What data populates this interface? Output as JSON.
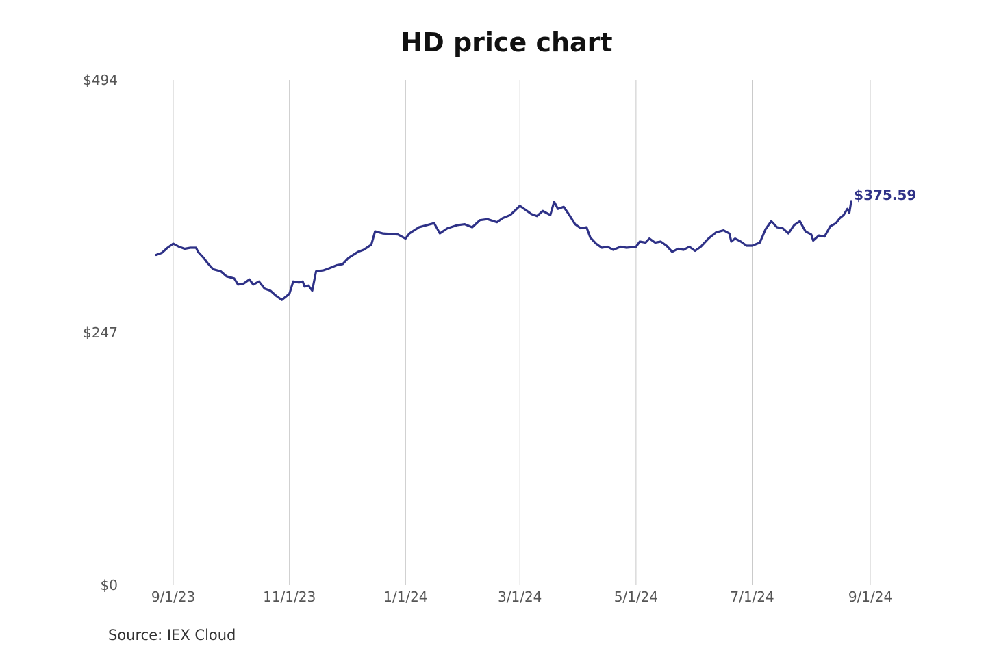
{
  "chart_data": {
    "type": "line",
    "title": "HD price chart",
    "source": "Source: IEX Cloud",
    "xlabel": "",
    "ylabel": "",
    "ylim": [
      0,
      494
    ],
    "xlim": [
      "2023-08-21",
      "2024-09-01"
    ],
    "y_ticks": [
      {
        "value": 494,
        "label": "$494"
      },
      {
        "value": 247,
        "label": "$247"
      },
      {
        "value": 0,
        "label": "$0"
      }
    ],
    "x_ticks": [
      {
        "value": "2023-09-01",
        "label": "9/1/23"
      },
      {
        "value": "2023-11-01",
        "label": "11/1/23"
      },
      {
        "value": "2024-01-01",
        "label": "1/1/24"
      },
      {
        "value": "2024-03-01",
        "label": "3/1/24"
      },
      {
        "value": "2024-05-01",
        "label": "5/1/24"
      },
      {
        "value": "2024-07-01",
        "label": "7/1/24"
      },
      {
        "value": "2024-09-01",
        "label": "9/1/24"
      }
    ],
    "grid": {
      "vertical": true,
      "horizontal": false
    },
    "line_color": "#2e3187",
    "grid_color": "#c8c8c8",
    "last_value_label": "$375.59",
    "series": [
      {
        "points": [
          [
            "2023-08-23",
            323
          ],
          [
            "2023-08-26",
            325
          ],
          [
            "2023-08-29",
            330
          ],
          [
            "2023-09-01",
            334
          ],
          [
            "2023-09-04",
            331
          ],
          [
            "2023-09-07",
            329
          ],
          [
            "2023-09-10",
            330
          ],
          [
            "2023-09-13",
            330
          ],
          [
            "2023-09-14",
            326
          ],
          [
            "2023-09-17",
            320
          ],
          [
            "2023-09-19",
            315
          ],
          [
            "2023-09-22",
            309
          ],
          [
            "2023-09-26",
            307
          ],
          [
            "2023-09-29",
            302
          ],
          [
            "2023-10-03",
            300
          ],
          [
            "2023-10-05",
            294
          ],
          [
            "2023-10-08",
            295
          ],
          [
            "2023-10-11",
            299
          ],
          [
            "2023-10-13",
            294
          ],
          [
            "2023-10-16",
            297
          ],
          [
            "2023-10-19",
            290
          ],
          [
            "2023-10-22",
            288
          ],
          [
            "2023-10-25",
            283
          ],
          [
            "2023-10-28",
            279
          ],
          [
            "2023-11-01",
            285
          ],
          [
            "2023-11-03",
            297
          ],
          [
            "2023-11-06",
            296
          ],
          [
            "2023-11-08",
            297
          ],
          [
            "2023-11-09",
            292
          ],
          [
            "2023-11-11",
            293
          ],
          [
            "2023-11-13",
            288
          ],
          [
            "2023-11-15",
            307
          ],
          [
            "2023-11-19",
            308
          ],
          [
            "2023-11-22",
            310
          ],
          [
            "2023-11-26",
            313
          ],
          [
            "2023-11-29",
            314
          ],
          [
            "2023-12-02",
            320
          ],
          [
            "2023-12-07",
            326
          ],
          [
            "2023-12-10",
            328
          ],
          [
            "2023-12-14",
            333
          ],
          [
            "2023-12-16",
            346
          ],
          [
            "2023-12-20",
            344
          ],
          [
            "2023-12-28",
            343
          ],
          [
            "2024-01-01",
            339
          ],
          [
            "2024-01-03",
            344
          ],
          [
            "2024-01-08",
            350
          ],
          [
            "2024-01-12",
            352
          ],
          [
            "2024-01-16",
            354
          ],
          [
            "2024-01-19",
            344
          ],
          [
            "2024-01-23",
            349
          ],
          [
            "2024-01-28",
            352
          ],
          [
            "2024-02-01",
            353
          ],
          [
            "2024-02-05",
            350
          ],
          [
            "2024-02-09",
            357
          ],
          [
            "2024-02-13",
            358
          ],
          [
            "2024-02-18",
            355
          ],
          [
            "2024-02-21",
            359
          ],
          [
            "2024-02-25",
            362
          ],
          [
            "2024-03-01",
            371
          ],
          [
            "2024-03-04",
            367
          ],
          [
            "2024-03-07",
            363
          ],
          [
            "2024-03-10",
            361
          ],
          [
            "2024-03-13",
            366
          ],
          [
            "2024-03-17",
            362
          ],
          [
            "2024-03-19",
            375
          ],
          [
            "2024-03-21",
            368
          ],
          [
            "2024-03-24",
            370
          ],
          [
            "2024-03-27",
            362
          ],
          [
            "2024-03-30",
            353
          ],
          [
            "2024-04-02",
            349
          ],
          [
            "2024-04-05",
            350
          ],
          [
            "2024-04-07",
            340
          ],
          [
            "2024-04-10",
            334
          ],
          [
            "2024-04-13",
            330
          ],
          [
            "2024-04-16",
            331
          ],
          [
            "2024-04-19",
            328
          ],
          [
            "2024-04-23",
            331
          ],
          [
            "2024-04-26",
            330
          ],
          [
            "2024-05-01",
            331
          ],
          [
            "2024-05-03",
            336
          ],
          [
            "2024-05-06",
            335
          ],
          [
            "2024-05-08",
            339
          ],
          [
            "2024-05-11",
            335
          ],
          [
            "2024-05-14",
            336
          ],
          [
            "2024-05-17",
            332
          ],
          [
            "2024-05-20",
            326
          ],
          [
            "2024-05-23",
            329
          ],
          [
            "2024-05-26",
            328
          ],
          [
            "2024-05-29",
            331
          ],
          [
            "2024-06-01",
            327
          ],
          [
            "2024-06-04",
            331
          ],
          [
            "2024-06-08",
            339
          ],
          [
            "2024-06-12",
            345
          ],
          [
            "2024-06-16",
            347
          ],
          [
            "2024-06-19",
            344
          ],
          [
            "2024-06-20",
            336
          ],
          [
            "2024-06-22",
            339
          ],
          [
            "2024-06-25",
            336
          ],
          [
            "2024-06-28",
            332
          ],
          [
            "2024-07-01",
            332
          ],
          [
            "2024-07-05",
            335
          ],
          [
            "2024-07-08",
            348
          ],
          [
            "2024-07-11",
            356
          ],
          [
            "2024-07-14",
            350
          ],
          [
            "2024-07-17",
            349
          ],
          [
            "2024-07-20",
            344
          ],
          [
            "2024-07-23",
            352
          ],
          [
            "2024-07-26",
            356
          ],
          [
            "2024-07-29",
            346
          ],
          [
            "2024-08-01",
            343
          ],
          [
            "2024-08-02",
            337
          ],
          [
            "2024-08-05",
            342
          ],
          [
            "2024-08-08",
            341
          ],
          [
            "2024-08-11",
            351
          ],
          [
            "2024-08-14",
            354
          ],
          [
            "2024-08-16",
            359
          ],
          [
            "2024-08-18",
            362
          ],
          [
            "2024-08-20",
            368
          ],
          [
            "2024-08-21",
            364
          ],
          [
            "2024-08-22",
            375.59
          ]
        ]
      }
    ]
  }
}
